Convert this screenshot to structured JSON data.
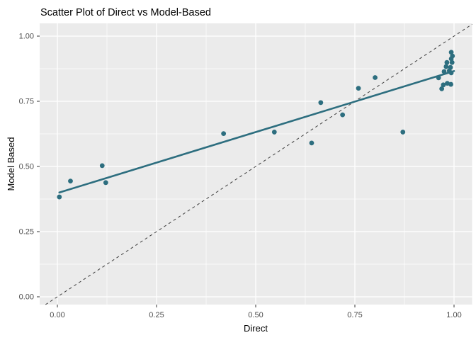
{
  "figure": {
    "title": "Scatter Plot of Direct vs Model-Based",
    "x_axis_label": "Direct",
    "y_axis_label": "Model Based"
  },
  "colors": {
    "panel_background": "#EBEBEB",
    "figure_background": "#FFFFFF",
    "gridline": "#FFFFFF",
    "point": "#2D6E7F",
    "trend_line": "#2D6E7F",
    "identity_line": "#3C3C3C",
    "tick_mark": "#333333",
    "tick_text": "#4D4D4D",
    "title_text": "#000000"
  },
  "chart_data": {
    "type": "scatter",
    "title": "Scatter Plot of Direct vs Model-Based",
    "xlabel": "Direct",
    "ylabel": "Model Based",
    "xlim": [
      -0.045,
      1.045
    ],
    "ylim": [
      -0.03,
      1.05
    ],
    "grid": true,
    "legend": "none",
    "x_ticks": {
      "values": [
        0,
        0.25,
        0.5,
        0.75,
        1
      ],
      "labels": [
        "0.00",
        "0.25",
        "0.50",
        "0.75",
        "1.00"
      ]
    },
    "y_ticks": {
      "values": [
        0,
        0.25,
        0.5,
        0.75,
        1
      ],
      "labels": [
        "0.00",
        "0.25",
        "0.50",
        "0.75",
        "1.00"
      ]
    },
    "minor_gridlines": [
      0.125,
      0.375,
      0.625,
      0.875
    ],
    "points": [
      [
        0.005,
        0.383
      ],
      [
        0.033,
        0.444
      ],
      [
        0.113,
        0.503
      ],
      [
        0.122,
        0.438
      ],
      [
        0.419,
        0.626
      ],
      [
        0.547,
        0.632
      ],
      [
        0.641,
        0.59
      ],
      [
        0.664,
        0.745
      ],
      [
        0.719,
        0.698
      ],
      [
        0.759,
        0.8
      ],
      [
        0.801,
        0.841
      ],
      [
        0.871,
        0.632
      ],
      [
        0.961,
        0.84
      ],
      [
        0.975,
        0.864
      ],
      [
        0.993,
        0.938
      ],
      [
        0.996,
        0.924
      ],
      [
        0.993,
        0.913
      ],
      [
        0.982,
        0.899
      ],
      [
        0.995,
        0.899
      ],
      [
        0.98,
        0.883
      ],
      [
        0.991,
        0.88
      ],
      [
        0.988,
        0.867
      ],
      [
        0.993,
        0.859
      ],
      [
        0.969,
        0.798
      ],
      [
        0.973,
        0.813
      ],
      [
        0.983,
        0.819
      ],
      [
        0.992,
        0.815
      ]
    ],
    "trend_line": {
      "type": "linear",
      "x1": 0.005,
      "y1": 0.4,
      "x2": 1.0,
      "y2": 0.866
    },
    "identity_line": {
      "equation": "y = x",
      "style": "dashed"
    }
  }
}
